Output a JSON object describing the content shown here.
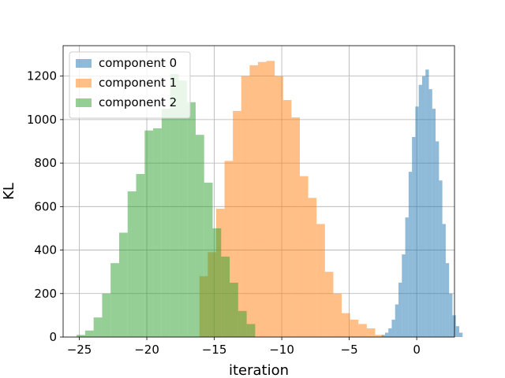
{
  "chart_data": {
    "type": "histogram",
    "title": "",
    "xlabel": "iteration",
    "ylabel": "KL",
    "xlim": [
      -26.2,
      2.8
    ],
    "ylim": [
      0,
      1340
    ],
    "x_ticks": [
      -25,
      -20,
      -15,
      -10,
      -5,
      0
    ],
    "x_tick_labels": [
      "−25",
      "−20",
      "−15",
      "−10",
      "−5",
      "0"
    ],
    "y_ticks": [
      0,
      200,
      400,
      600,
      800,
      1000,
      1200
    ],
    "y_tick_labels": [
      "0",
      "200",
      "400",
      "600",
      "800",
      "1000",
      "1200"
    ],
    "grid": true,
    "legend_position": "top-left",
    "colors": [
      "#1f77b4",
      "#ff7f0e",
      "#2ca02c"
    ],
    "bar_alpha": 0.5,
    "series": [
      {
        "name": "component 0",
        "bin_start": -2.6,
        "bin_width": 0.25,
        "counts": [
          10,
          20,
          40,
          80,
          150,
          250,
          380,
          550,
          760,
          920,
          1060,
          1160,
          1200,
          1230,
          1140,
          1050,
          900,
          720,
          520,
          340,
          200,
          100,
          50,
          20
        ]
      },
      {
        "name": "component 1",
        "bin_start": -16.1,
        "bin_width": 0.62,
        "counts": [
          280,
          390,
          590,
          810,
          1040,
          1200,
          1250,
          1265,
          1270,
          1200,
          1090,
          1010,
          740,
          640,
          520,
          300,
          200,
          110,
          80,
          60,
          40,
          10
        ]
      },
      {
        "name": "component 2",
        "bin_start": -25.2,
        "bin_width": 0.63,
        "counts": [
          10,
          30,
          90,
          200,
          340,
          480,
          670,
          750,
          950,
          960,
          1050,
          1210,
          1180,
          1080,
          930,
          710,
          500,
          370,
          250,
          120,
          60
        ]
      }
    ]
  }
}
